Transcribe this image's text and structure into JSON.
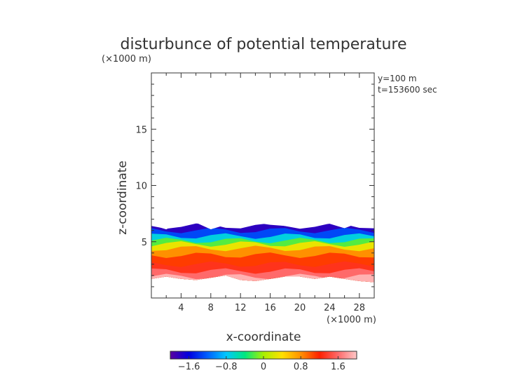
{
  "chart_data": {
    "type": "heatmap",
    "title": "disturbunce of potential temperature",
    "xlabel": "x-coordinate",
    "ylabel": "z-coordinate",
    "x_unit": "(×1000 m)",
    "y_unit": "(×1000 m)",
    "annotations": [
      "y=100 m",
      "t=153600 sec"
    ],
    "xlim": [
      0,
      30
    ],
    "ylim": [
      0,
      20
    ],
    "x_ticks": [
      4,
      8,
      12,
      16,
      20,
      24,
      28
    ],
    "y_ticks": [
      5,
      10,
      15
    ],
    "colorbar": {
      "range": [
        -2.0,
        2.0
      ],
      "ticks": [
        -1.6,
        -0.8,
        0,
        0.8,
        1.6
      ],
      "tick_labels": [
        "−1.6",
        "−0.8",
        "0",
        "0.8",
        "1.6"
      ],
      "colors": [
        "#5a00a0",
        "#0000e0",
        "#0060ff",
        "#00c8ff",
        "#00e880",
        "#a8f000",
        "#ffe000",
        "#ff9000",
        "#ff2000",
        "#ff6a6a",
        "#ffc8c8"
      ]
    },
    "field": {
      "x": [
        0,
        2,
        4,
        6,
        8,
        10,
        12,
        14,
        16,
        18,
        20,
        22,
        24,
        26,
        28,
        30
      ],
      "top_z": [
        6.5,
        6.1,
        6.8,
        6.7,
        6.1,
        6.5,
        6.8,
        6.7,
        6.5,
        6.4,
        6.2,
        6.5,
        6.6,
        6.2,
        6.7,
        6.7
      ],
      "bottom_z": [
        1.7,
        1.9,
        1.7,
        1.6,
        1.8,
        2.0,
        1.6,
        1.5,
        1.7,
        1.9,
        1.9,
        1.7,
        1.9,
        1.7,
        1.5,
        1.4
      ],
      "z_levels": [
        6.4,
        6.0,
        5.5,
        5.1,
        4.8,
        4.4,
        3.8,
        3.0,
        2.4,
        1.9
      ],
      "level_values": [
        -1.8,
        -1.3,
        -0.7,
        -0.2,
        0.3,
        0.8,
        1.1,
        1.3,
        1.6,
        1.9
      ]
    }
  }
}
